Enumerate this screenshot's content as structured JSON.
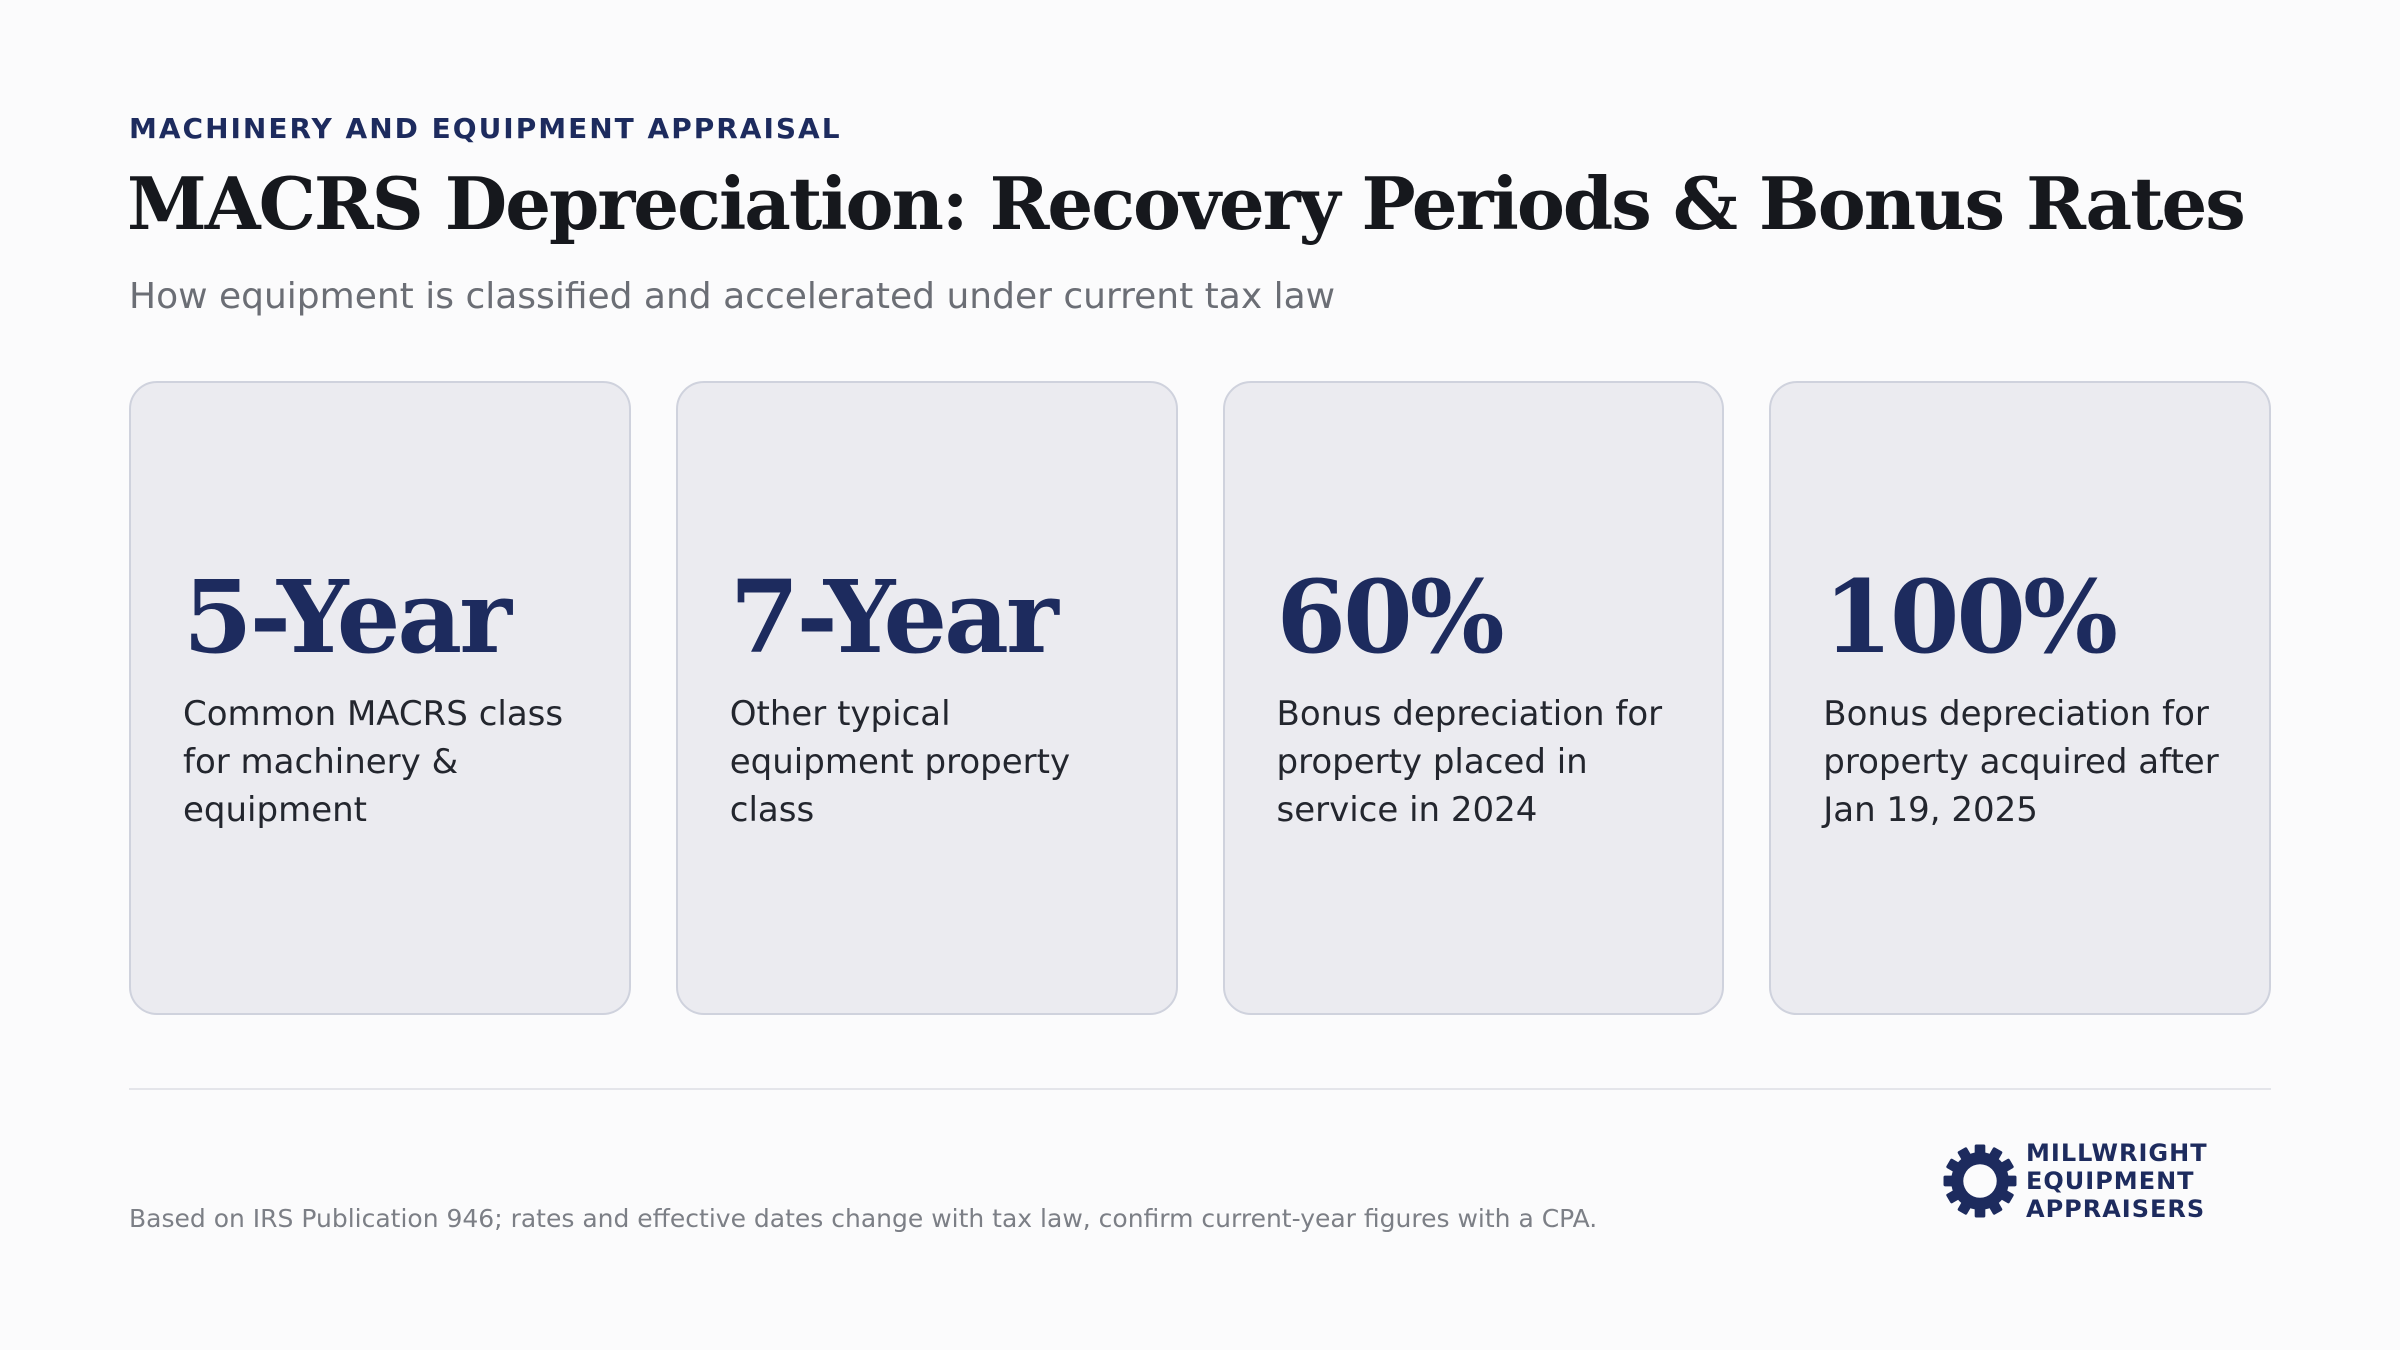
{
  "header": {
    "eyebrow": "MACHINERY AND EQUIPMENT APPRAISAL",
    "title": "MACRS Depreciation: Recovery Periods & Bonus Rates",
    "subtitle": "How equipment is classified and accelerated under current tax law"
  },
  "cards": [
    {
      "value": "5-Year",
      "description": "Common MACRS class for machinery & equipment"
    },
    {
      "value": "7-Year",
      "description": "Other typical equipment property class"
    },
    {
      "value": "60%",
      "description": "Bonus depreciation for property placed in service in 2024"
    },
    {
      "value": "100%",
      "description": "Bonus depreciation for property acquired after Jan 19, 2025"
    }
  ],
  "footer": {
    "note": "Based on IRS Publication 946; rates and effective dates change with tax law, confirm current-year figures with a CPA.",
    "logo": {
      "icon": "gear-icon",
      "lines": [
        "MILLWRIGHT",
        "EQUIPMENT",
        "APPRAISERS"
      ],
      "color": "#1d2b5e"
    }
  },
  "colors": {
    "accent": "#1d2b5e",
    "card_background": "#ebebf0",
    "page_background": "#fbfbfc"
  }
}
